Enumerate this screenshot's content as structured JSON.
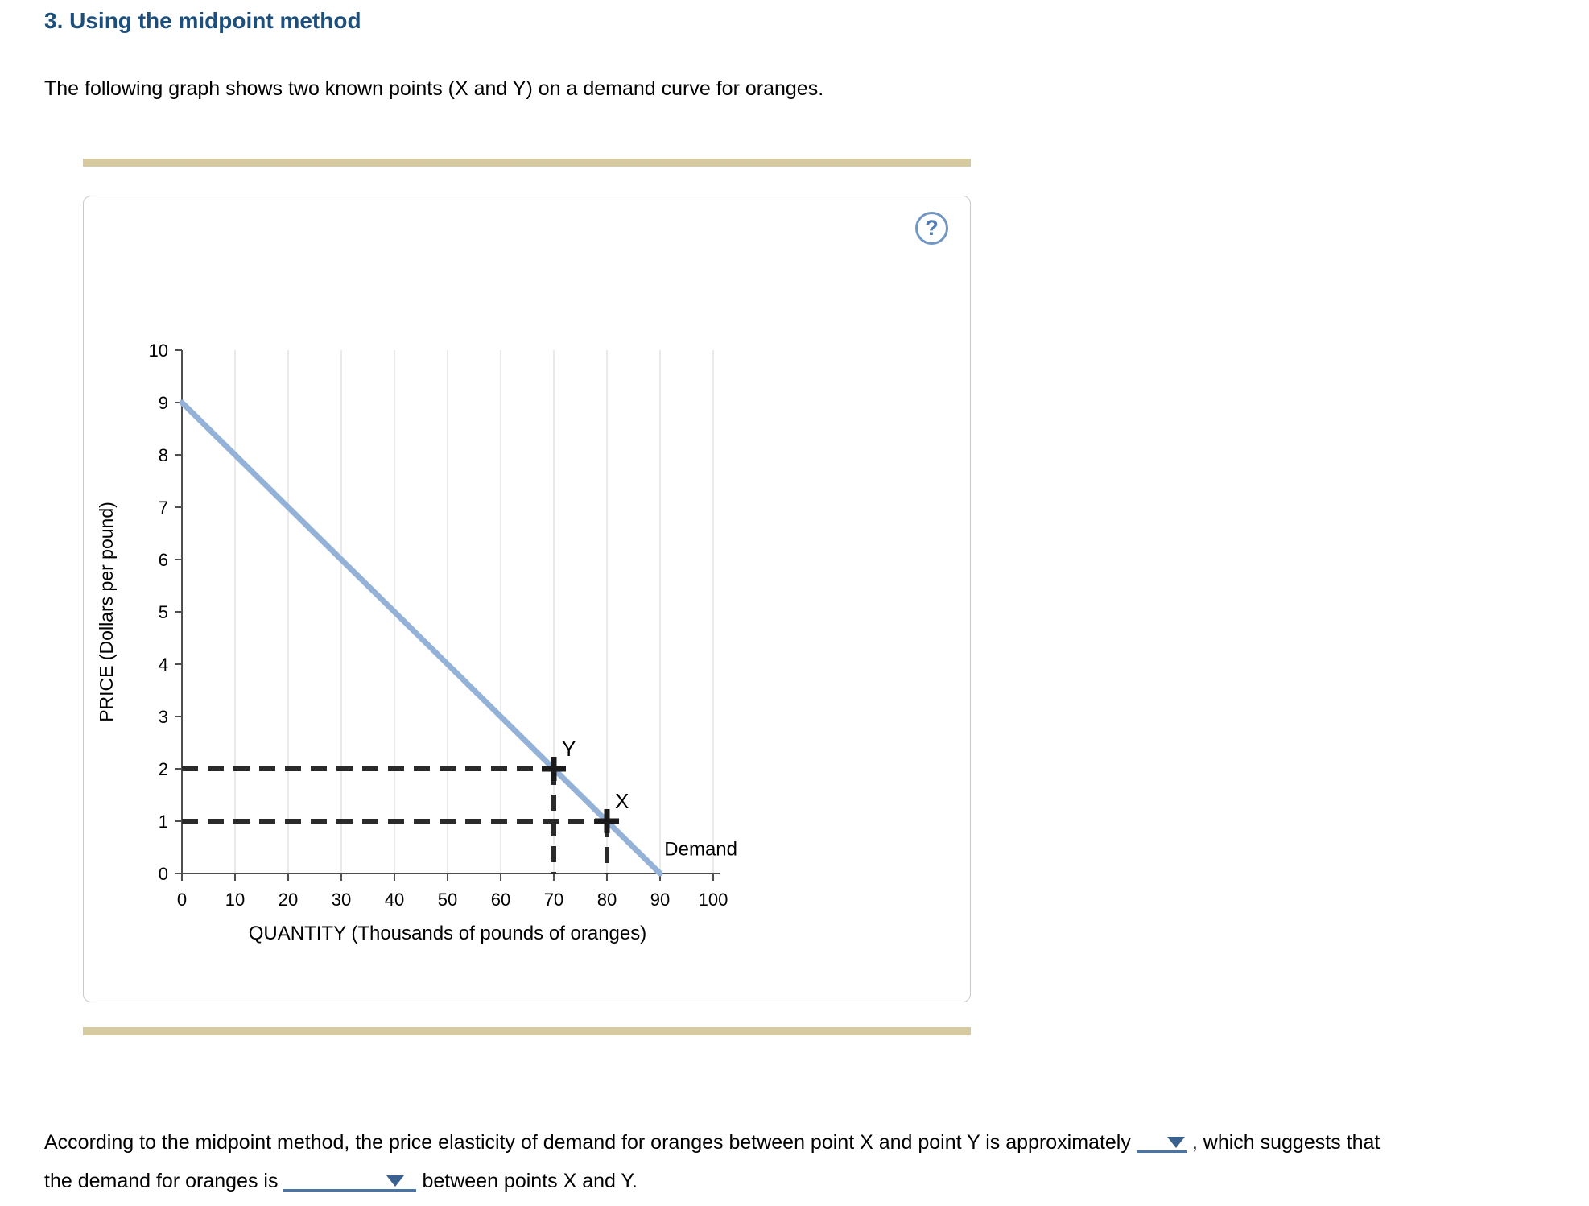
{
  "page": {
    "title": "3. Using the midpoint method",
    "intro": "The following graph shows two known points (X and Y) on a demand curve for oranges."
  },
  "panel": {
    "help_label": "?"
  },
  "chart_data": {
    "type": "line",
    "title": "",
    "xlabel": "QUANTITY (Thousands of pounds of oranges)",
    "ylabel": "PRICE (Dollars per pound)",
    "xlim": [
      0,
      100
    ],
    "ylim": [
      0,
      10
    ],
    "x_ticks": [
      0,
      10,
      20,
      30,
      40,
      50,
      60,
      70,
      80,
      90,
      100
    ],
    "y_ticks": [
      0,
      1,
      2,
      3,
      4,
      5,
      6,
      7,
      8,
      9,
      10
    ],
    "grid": "vertical-only",
    "legend": "none",
    "series": [
      {
        "name": "Demand",
        "type": "line",
        "color": "#94b2d8",
        "points": [
          [
            0,
            9
          ],
          [
            90,
            0
          ]
        ]
      }
    ],
    "marked_points": [
      {
        "label": "Y",
        "x": 70,
        "y": 2
      },
      {
        "label": "X",
        "x": 80,
        "y": 1
      }
    ],
    "annotations": [
      {
        "text": "Demand",
        "x": 90.8,
        "y": 0.35
      }
    ],
    "colors": {
      "grid": "#d6d6d6",
      "axis": "#4f4f4f",
      "dashed": "#2b2b2b",
      "marker": "#1a1a1a"
    }
  },
  "question": {
    "part1": "According to the midpoint method, the price elasticity of demand for oranges between point X and point Y is approximately",
    "part1_end": ", which suggests that",
    "part2": "the demand for oranges is",
    "part2_end": "between points X and Y."
  }
}
